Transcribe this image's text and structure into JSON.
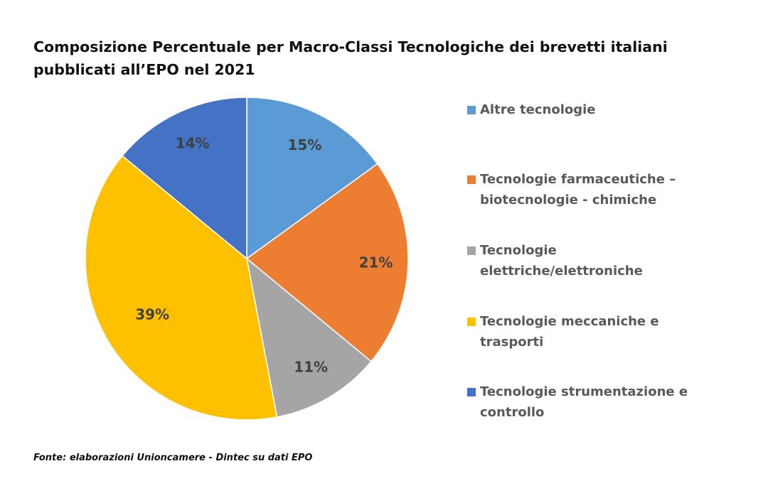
{
  "chart_data": {
    "type": "pie",
    "title": "Composizione Percentuale per Macro-Classi Tecnologiche dei brevetti italiani pubblicati all’EPO nel 2021",
    "categories": [
      "Altre tecnologie",
      "Tecnologie farmaceutiche – biotecnologie - chimiche",
      "Tecnologie elettriche/elettroniche",
      "Tecnologie meccaniche e trasporti",
      "Tecnologie strumentazione e controllo"
    ],
    "values": [
      15,
      21,
      11,
      39,
      14
    ],
    "data_labels": [
      "15%",
      "21%",
      "11%",
      "39%",
      "14%"
    ],
    "colors": [
      "#5b9bd5",
      "#ed7d31",
      "#a5a5a5",
      "#ffc000",
      "#4472c4"
    ],
    "start": "12 o'clock, clockwise",
    "legend_position": "right"
  },
  "source": "Fonte: elaborazioni Unioncamere - Dintec su dati EPO"
}
